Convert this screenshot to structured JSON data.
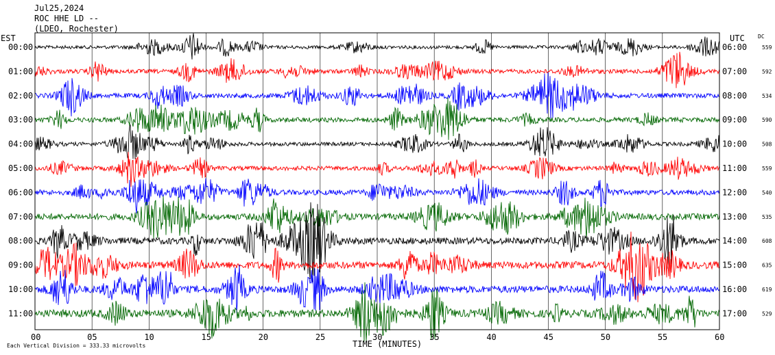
{
  "header": {
    "date": "Jul25,2024",
    "station": "ROC HHE LD --",
    "network": "(LDEO, Rochester)"
  },
  "left_axis_title": "EST",
  "right_axis_title": "UTC",
  "dc_title": "DC",
  "footer_note": "Each Vertical Division = 333.33 microvolts",
  "chart_data": {
    "type": "line",
    "xlabel": "TIME (MINUTES)",
    "xlim": [
      0,
      60
    ],
    "x_ticks": [
      "00",
      "05",
      "10",
      "15",
      "20",
      "25",
      "30",
      "35",
      "40",
      "45",
      "50",
      "55",
      "60"
    ],
    "rows": [
      {
        "est": "00:00",
        "utc": "06:00",
        "dc": "559",
        "color": "#000000",
        "amp": 7
      },
      {
        "est": "01:00",
        "utc": "07:00",
        "dc": "592",
        "color": "#ff0000",
        "amp": 9
      },
      {
        "est": "02:00",
        "utc": "08:00",
        "dc": "534",
        "color": "#0000ff",
        "amp": 10
      },
      {
        "est": "03:00",
        "utc": "09:00",
        "dc": "590",
        "color": "#006600",
        "amp": 10
      },
      {
        "est": "04:00",
        "utc": "10:00",
        "dc": "508",
        "color": "#000000",
        "amp": 8
      },
      {
        "est": "05:00",
        "utc": "11:00",
        "dc": "559",
        "color": "#ff0000",
        "amp": 9
      },
      {
        "est": "06:00",
        "utc": "12:00",
        "dc": "540",
        "color": "#0000ff",
        "amp": 11
      },
      {
        "est": "07:00",
        "utc": "13:00",
        "dc": "535",
        "color": "#006600",
        "amp": 13
      },
      {
        "est": "08:00",
        "utc": "14:00",
        "dc": "608",
        "color": "#000000",
        "amp": 14
      },
      {
        "est": "09:00",
        "utc": "15:00",
        "dc": "635",
        "color": "#ff0000",
        "amp": 15
      },
      {
        "est": "10:00",
        "utc": "16:00",
        "dc": "619",
        "color": "#0000ff",
        "amp": 15
      },
      {
        "est": "11:00",
        "utc": "17:00",
        "dc": "529",
        "color": "#006600",
        "amp": 16
      }
    ]
  }
}
